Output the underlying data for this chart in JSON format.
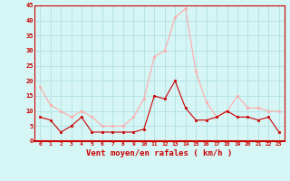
{
  "hours": [
    0,
    1,
    2,
    3,
    4,
    5,
    6,
    7,
    8,
    9,
    10,
    11,
    12,
    13,
    14,
    15,
    16,
    17,
    18,
    19,
    20,
    21,
    22,
    23
  ],
  "vent_moyen": [
    8,
    7,
    3,
    5,
    8,
    3,
    3,
    3,
    3,
    3,
    4,
    15,
    14,
    20,
    11,
    7,
    7,
    8,
    10,
    8,
    8,
    7,
    8,
    3
  ],
  "vent_rafales": [
    18,
    12,
    10,
    8,
    10,
    8,
    5,
    5,
    5,
    8,
    14,
    28,
    30,
    41,
    44,
    23,
    13,
    8,
    10,
    15,
    11,
    11,
    10,
    10
  ],
  "color_moyen": "#cc0000",
  "color_rafales": "#ffaaaa",
  "bg_color": "#d6f5f5",
  "grid_color": "#aadddd",
  "xlabel": "Vent moyen/en rafales ( km/h )",
  "ylim": [
    0,
    45
  ],
  "yticks": [
    0,
    5,
    10,
    15,
    20,
    25,
    30,
    35,
    40,
    45
  ]
}
